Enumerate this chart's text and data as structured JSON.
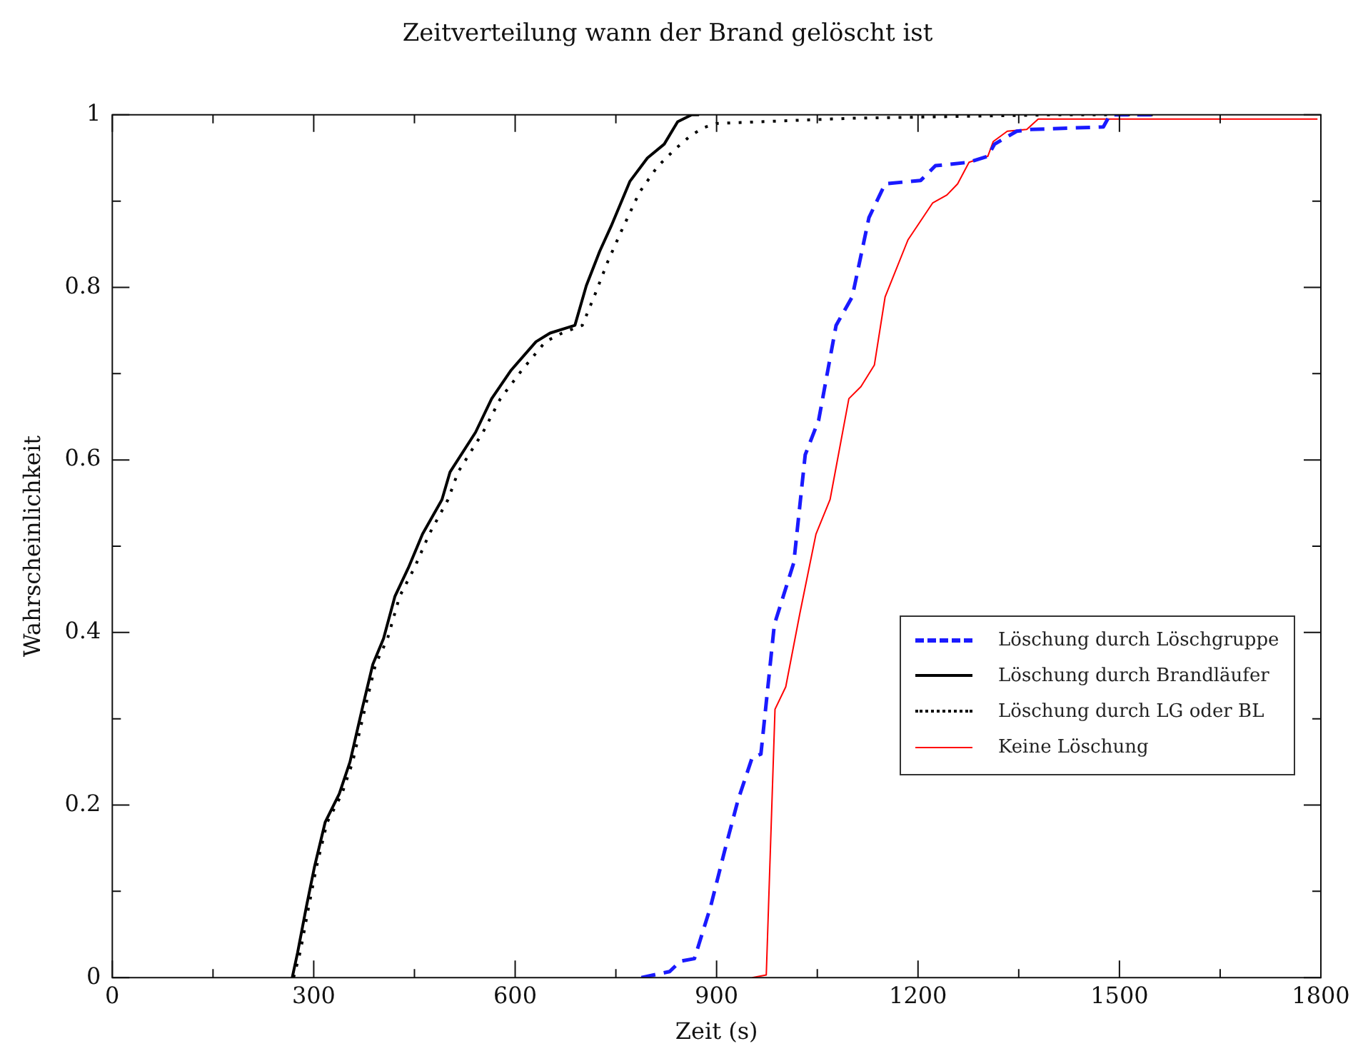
{
  "chart_data": {
    "type": "line",
    "title": "Zeitverteilung wann der Brand gelöscht ist",
    "xlabel": "Zeit (s)",
    "ylabel": "Wahrscheinlichkeit",
    "xlim": [
      0,
      1800
    ],
    "xticks": [
      0,
      {
        "value": 150,
        "label": null
      },
      300,
      {
        "value": 450,
        "label": null
      },
      600,
      {
        "value": 750,
        "label": null
      },
      900,
      {
        "value": 1050,
        "label": null
      },
      1200,
      {
        "value": 1350,
        "label": null
      },
      1500,
      {
        "value": 1650,
        "label": null
      },
      1800
    ],
    "ylim": [
      0,
      1
    ],
    "yticks": [
      0,
      {
        "value": 0.1,
        "label": null
      },
      0.2,
      {
        "value": 0.3,
        "label": null
      },
      0.4,
      {
        "value": 0.5,
        "label": null
      },
      0.6,
      {
        "value": 0.7,
        "label": null
      },
      0.8,
      {
        "value": 0.9,
        "label": null
      },
      1
    ],
    "grid": false,
    "legend": "right",
    "marker": "none",
    "series": [
      {
        "name": "Löschung durch Löschgruppe",
        "color": "#1a1aff",
        "line_style": "dashed",
        "x": [
          788,
          830,
          846,
          867,
          891,
          912,
          932,
          953,
          966,
          986,
          1015,
          1032,
          1052,
          1078,
          1102,
          1127,
          1151,
          1204,
          1226,
          1276,
          1304,
          1314,
          1347,
          1368,
          1476,
          1486,
          1555
        ],
        "values": [
          0,
          0.007,
          0.019,
          0.022,
          0.082,
          0.147,
          0.206,
          0.255,
          0.259,
          0.409,
          0.481,
          0.606,
          0.646,
          0.756,
          0.789,
          0.881,
          0.92,
          0.924,
          0.941,
          0.945,
          0.952,
          0.966,
          0.981,
          0.983,
          0.986,
          1,
          1
        ]
      },
      {
        "name": "Löschung durch Brandläufer",
        "color": "#000000",
        "line_style": "solid",
        "x": [
          268,
          276,
          289,
          301,
          317,
          338,
          354,
          372,
          388,
          404,
          421,
          441,
          462,
          491,
          503,
          541,
          565,
          594,
          631,
          652,
          689,
          706,
          726,
          743,
          771,
          797,
          822,
          842,
          863,
          874
        ],
        "values": [
          0,
          0.029,
          0.082,
          0.128,
          0.18,
          0.213,
          0.25,
          0.311,
          0.363,
          0.393,
          0.442,
          0.475,
          0.514,
          0.554,
          0.586,
          0.632,
          0.671,
          0.704,
          0.737,
          0.747,
          0.756,
          0.802,
          0.842,
          0.871,
          0.923,
          0.95,
          0.966,
          0.992,
          1,
          1
        ]
      },
      {
        "name": "Löschung durch LG oder BL",
        "color": "#000000",
        "line_style": "dotted",
        "x": [
          270,
          280,
          292,
          304,
          320,
          342,
          358,
          376,
          392,
          410,
          428,
          450,
          472,
          500,
          515,
          552,
          578,
          610,
          645,
          670,
          700,
          718,
          738,
          758,
          785,
          812,
          838,
          860,
          880,
          900,
          1000,
          1100,
          1250,
          1400,
          1555
        ],
        "values": [
          0,
          0.03,
          0.08,
          0.128,
          0.18,
          0.213,
          0.25,
          0.311,
          0.363,
          0.393,
          0.442,
          0.475,
          0.514,
          0.554,
          0.586,
          0.632,
          0.671,
          0.704,
          0.737,
          0.747,
          0.756,
          0.79,
          0.83,
          0.865,
          0.91,
          0.94,
          0.96,
          0.975,
          0.985,
          0.99,
          0.993,
          0.996,
          0.998,
          1,
          1
        ]
      },
      {
        "name": "Keine Löschung",
        "color": "#ff0000",
        "line_style": "solid",
        "x": [
          953,
          974,
          987,
          1003,
          1024,
          1048,
          1069,
          1097,
          1115,
          1135,
          1151,
          1185,
          1222,
          1243,
          1259,
          1276,
          1304,
          1312,
          1333,
          1362,
          1379,
          1795
        ],
        "values": [
          0,
          0.003,
          0.311,
          0.337,
          0.422,
          0.514,
          0.554,
          0.671,
          0.685,
          0.71,
          0.789,
          0.855,
          0.898,
          0.907,
          0.92,
          0.945,
          0.952,
          0.969,
          0.981,
          0.983,
          0.995,
          0.995
        ]
      }
    ]
  }
}
